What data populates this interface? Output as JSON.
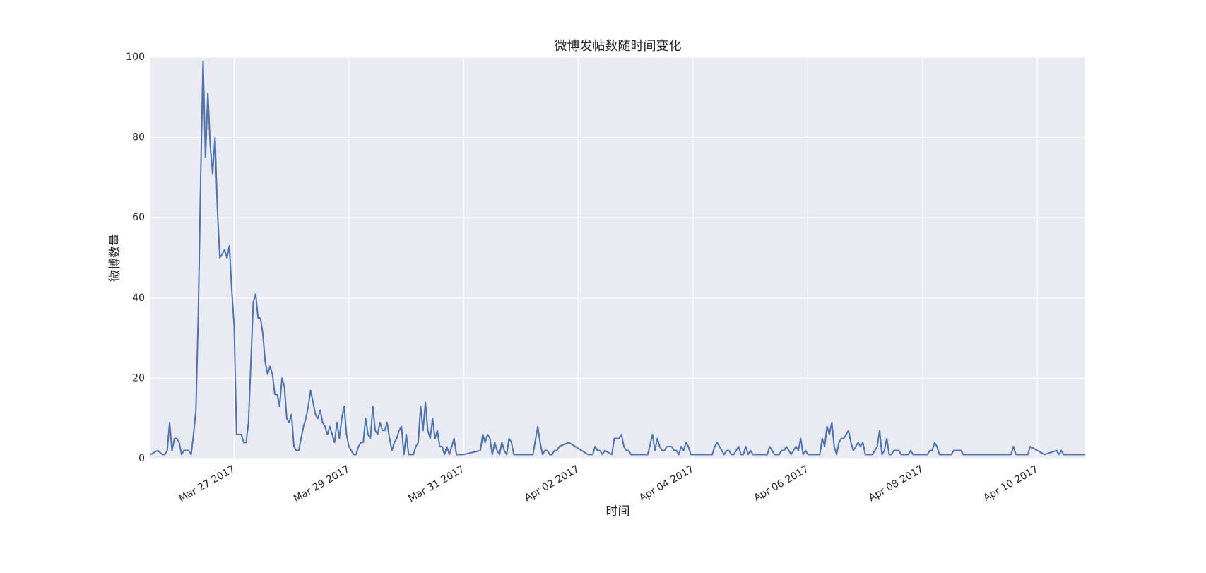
{
  "chart_data": {
    "type": "line",
    "title": "微博发帖数随时间变化",
    "xlabel": "时间",
    "ylabel": "微博数量",
    "color": "#4c72b0",
    "grid": true,
    "x": [
      "2017-03-25T13:00",
      "2017-03-25T16:00",
      "2017-03-25T18:00",
      "2017-03-25T19:00",
      "2017-03-25T20:00",
      "2017-03-25T21:00",
      "2017-03-25T22:00",
      "2017-03-25T23:00",
      "2017-03-26T00:00",
      "2017-03-26T01:00",
      "2017-03-26T02:00",
      "2017-03-26T03:00",
      "2017-03-26T04:00",
      "2017-03-26T05:00",
      "2017-03-26T06:00",
      "2017-03-26T07:00",
      "2017-03-26T08:00",
      "2017-03-26T09:00",
      "2017-03-26T10:00",
      "2017-03-26T11:00",
      "2017-03-26T12:00",
      "2017-03-26T13:00",
      "2017-03-26T14:00",
      "2017-03-26T15:00",
      "2017-03-26T16:00",
      "2017-03-26T17:00",
      "2017-03-26T18:00",
      "2017-03-26T19:00",
      "2017-03-26T20:00",
      "2017-03-26T21:00",
      "2017-03-26T22:00",
      "2017-03-26T23:00",
      "2017-03-27T00:00",
      "2017-03-27T01:00",
      "2017-03-27T02:00",
      "2017-03-27T03:00",
      "2017-03-27T04:00",
      "2017-03-27T05:00",
      "2017-03-27T06:00",
      "2017-03-27T07:00",
      "2017-03-27T08:00",
      "2017-03-27T09:00",
      "2017-03-27T10:00",
      "2017-03-27T11:00",
      "2017-03-27T12:00",
      "2017-03-27T13:00",
      "2017-03-27T14:00",
      "2017-03-27T15:00",
      "2017-03-27T16:00",
      "2017-03-27T17:00",
      "2017-03-27T18:00",
      "2017-03-27T19:00",
      "2017-03-27T20:00",
      "2017-03-27T21:00",
      "2017-03-27T22:00",
      "2017-03-27T23:00",
      "2017-03-28T00:00",
      "2017-03-28T01:00",
      "2017-03-28T02:00",
      "2017-03-28T03:00",
      "2017-03-28T04:00",
      "2017-03-28T05:00",
      "2017-03-28T06:00",
      "2017-03-28T07:00",
      "2017-03-28T08:00",
      "2017-03-28T09:00",
      "2017-03-28T10:00",
      "2017-03-28T11:00",
      "2017-03-28T12:00",
      "2017-03-28T13:00",
      "2017-03-28T14:00",
      "2017-03-28T15:00",
      "2017-03-28T16:00",
      "2017-03-28T17:00",
      "2017-03-28T18:00",
      "2017-03-28T19:00",
      "2017-03-28T20:00",
      "2017-03-28T21:00",
      "2017-03-28T22:00",
      "2017-03-28T23:00",
      "2017-03-29T00:00",
      "2017-03-29T01:00",
      "2017-03-29T02:00",
      "2017-03-29T03:00",
      "2017-03-29T04:00",
      "2017-03-29T05:00",
      "2017-03-29T06:00",
      "2017-03-29T07:00",
      "2017-03-29T08:00",
      "2017-03-29T09:00",
      "2017-03-29T10:00",
      "2017-03-29T11:00",
      "2017-03-29T12:00",
      "2017-03-29T13:00",
      "2017-03-29T14:00",
      "2017-03-29T15:00",
      "2017-03-29T16:00",
      "2017-03-29T17:00",
      "2017-03-29T18:00",
      "2017-03-29T19:00",
      "2017-03-29T20:00",
      "2017-03-29T21:00",
      "2017-03-29T22:00",
      "2017-03-29T23:00",
      "2017-03-30T00:00",
      "2017-03-30T01:00",
      "2017-03-30T02:00",
      "2017-03-30T03:00",
      "2017-03-30T04:00",
      "2017-03-30T05:00",
      "2017-03-30T06:00",
      "2017-03-30T07:00",
      "2017-03-30T08:00",
      "2017-03-30T09:00",
      "2017-03-30T10:00",
      "2017-03-30T11:00",
      "2017-03-30T12:00",
      "2017-03-30T13:00",
      "2017-03-30T14:00",
      "2017-03-30T15:00",
      "2017-03-30T16:00",
      "2017-03-30T17:00",
      "2017-03-30T18:00",
      "2017-03-30T19:00",
      "2017-03-30T20:00",
      "2017-03-30T21:00",
      "2017-03-30T22:00",
      "2017-03-31T00:00",
      "2017-03-31T07:00",
      "2017-03-31T08:00",
      "2017-03-31T09:00",
      "2017-03-31T10:00",
      "2017-03-31T11:00",
      "2017-03-31T12:00",
      "2017-03-31T13:00",
      "2017-03-31T14:00",
      "2017-03-31T15:00",
      "2017-03-31T16:00",
      "2017-03-31T17:00",
      "2017-03-31T18:00",
      "2017-03-31T19:00",
      "2017-03-31T20:00",
      "2017-03-31T21:00",
      "2017-04-01T05:00",
      "2017-04-01T07:00",
      "2017-04-01T08:00",
      "2017-04-01T09:00",
      "2017-04-01T10:00",
      "2017-04-01T11:00",
      "2017-04-01T12:00",
      "2017-04-01T13:00",
      "2017-04-01T14:00",
      "2017-04-01T15:00",
      "2017-04-01T16:00",
      "2017-04-01T20:00",
      "2017-04-02T04:00",
      "2017-04-02T06:00",
      "2017-04-02T07:00",
      "2017-04-02T08:00",
      "2017-04-02T09:00",
      "2017-04-02T10:00",
      "2017-04-02T11:00",
      "2017-04-02T14:00",
      "2017-04-02T15:00",
      "2017-04-02T16:00",
      "2017-04-02T17:00",
      "2017-04-02T18:00",
      "2017-04-02T19:00",
      "2017-04-02T20:00",
      "2017-04-02T21:00",
      "2017-04-02T22:00",
      "2017-04-03T00:00",
      "2017-04-03T05:00",
      "2017-04-03T07:00",
      "2017-04-03T08:00",
      "2017-04-03T09:00",
      "2017-04-03T10:00",
      "2017-04-03T11:00",
      "2017-04-03T12:00",
      "2017-04-03T13:00",
      "2017-04-03T14:00",
      "2017-04-03T15:00",
      "2017-04-03T16:00",
      "2017-04-03T17:00",
      "2017-04-03T18:00",
      "2017-04-03T19:00",
      "2017-04-03T20:00",
      "2017-04-03T21:00",
      "2017-04-03T22:00",
      "2017-04-03T23:00",
      "2017-04-04T08:00",
      "2017-04-04T09:00",
      "2017-04-04T10:00",
      "2017-04-04T11:00",
      "2017-04-04T12:00",
      "2017-04-04T13:00",
      "2017-04-04T14:00",
      "2017-04-04T15:00",
      "2017-04-04T16:00",
      "2017-04-04T17:00",
      "2017-04-04T18:00",
      "2017-04-04T19:00",
      "2017-04-04T20:00",
      "2017-04-04T21:00",
      "2017-04-04T22:00",
      "2017-04-04T23:00",
      "2017-04-05T00:00",
      "2017-04-05T01:00",
      "2017-04-05T07:00",
      "2017-04-05T08:00",
      "2017-04-05T09:00",
      "2017-04-05T10:00",
      "2017-04-05T12:00",
      "2017-04-05T13:00",
      "2017-04-05T14:00",
      "2017-04-05T15:00",
      "2017-04-05T16:00",
      "2017-04-05T17:00",
      "2017-04-05T18:00",
      "2017-04-05T19:00",
      "2017-04-05T20:00",
      "2017-04-05T21:00",
      "2017-04-05T22:00",
      "2017-04-05T23:00",
      "2017-04-06T00:00",
      "2017-04-06T05:00",
      "2017-04-06T06:00",
      "2017-04-06T07:00",
      "2017-04-06T08:00",
      "2017-04-06T09:00",
      "2017-04-06T10:00",
      "2017-04-06T11:00",
      "2017-04-06T12:00",
      "2017-04-06T13:00",
      "2017-04-06T14:00",
      "2017-04-06T15:00",
      "2017-04-06T16:00",
      "2017-04-06T17:00",
      "2017-04-06T18:00",
      "2017-04-06T19:00",
      "2017-04-06T20:00",
      "2017-04-06T21:00",
      "2017-04-06T22:00",
      "2017-04-06T23:00",
      "2017-04-07T00:00",
      "2017-04-07T03:00",
      "2017-04-07T04:00",
      "2017-04-07T05:00",
      "2017-04-07T06:00",
      "2017-04-07T07:00",
      "2017-04-07T08:00",
      "2017-04-07T09:00",
      "2017-04-07T10:00",
      "2017-04-07T11:00",
      "2017-04-07T12:00",
      "2017-04-07T13:00",
      "2017-04-07T14:00",
      "2017-04-07T15:00",
      "2017-04-07T18:00",
      "2017-04-07T19:00",
      "2017-04-07T20:00",
      "2017-04-08T02:00",
      "2017-04-08T03:00",
      "2017-04-08T04:00",
      "2017-04-08T05:00",
      "2017-04-08T06:00",
      "2017-04-08T07:00",
      "2017-04-08T12:00",
      "2017-04-08T13:00",
      "2017-04-08T16:00",
      "2017-04-08T17:00",
      "2017-04-09T13:00",
      "2017-04-09T14:00",
      "2017-04-09T15:00",
      "2017-04-09T20:00",
      "2017-04-09T21:00",
      "2017-04-10T03:00",
      "2017-04-10T08:00",
      "2017-04-10T09:00",
      "2017-04-10T10:00",
      "2017-04-10T11:00",
      "2017-04-10T20:00"
    ],
    "values": [
      1,
      2,
      1,
      1,
      2,
      9,
      2,
      5,
      5,
      4,
      1,
      2,
      2,
      2,
      1,
      6,
      12,
      36,
      70,
      99,
      75,
      91,
      78,
      71,
      80,
      62,
      50,
      51,
      52,
      50,
      53,
      42,
      33,
      6,
      6,
      6,
      4,
      4,
      9,
      24,
      39,
      41,
      35,
      35,
      31,
      24,
      21,
      23,
      21,
      16,
      16,
      13,
      20,
      18,
      10,
      9,
      11,
      3,
      2,
      2,
      5,
      8,
      10,
      13,
      17,
      14,
      11,
      10,
      12,
      9,
      8,
      6,
      8,
      6,
      4,
      9,
      5,
      10,
      13,
      6,
      3,
      2,
      1,
      1,
      3,
      4,
      4,
      10,
      6,
      5,
      13,
      7,
      6,
      9,
      7,
      7,
      9,
      5,
      2,
      4,
      5,
      7,
      8,
      1,
      6,
      1,
      1,
      1,
      3,
      4,
      13,
      7,
      14,
      7,
      5,
      10,
      5,
      7,
      3,
      3,
      1,
      3,
      1,
      3,
      5,
      1,
      1,
      1,
      2,
      6,
      4,
      6,
      5,
      1,
      4,
      2,
      1,
      4,
      2,
      1,
      5,
      4,
      1,
      1,
      8,
      4,
      1,
      2,
      2,
      1,
      1,
      2,
      2,
      3,
      4,
      1,
      1,
      3,
      2,
      2,
      1,
      2,
      1,
      5,
      5,
      5,
      6,
      3,
      2,
      2,
      1,
      1,
      1,
      6,
      2,
      5,
      3,
      2,
      2,
      3,
      3,
      3,
      2,
      2,
      1,
      3,
      2,
      4,
      3,
      1,
      1,
      3,
      4,
      3,
      2,
      1,
      2,
      2,
      1,
      1,
      2,
      3,
      1,
      1,
      3,
      1,
      2,
      1,
      1,
      3,
      2,
      1,
      1,
      2,
      2,
      3,
      2,
      1,
      2,
      3,
      2,
      5,
      1,
      2,
      1,
      1,
      5,
      3,
      8,
      6,
      9,
      3,
      1,
      4,
      5,
      5,
      6,
      7,
      4,
      2,
      3,
      4,
      3,
      4,
      1,
      1,
      2,
      3,
      7,
      1,
      2,
      5,
      1,
      1,
      2,
      2,
      2,
      1,
      1,
      2,
      1,
      1,
      2,
      2,
      4,
      3,
      1,
      1,
      2,
      2,
      1,
      1,
      3,
      1,
      1,
      3,
      1,
      2,
      1,
      2,
      1,
      1
    ],
    "xlim": [
      "2017-03-25T13:00",
      "2017-04-10T20:00"
    ],
    "xticks": [
      {
        "value": "2017-03-27T00:00",
        "label": "Mar 27 2017"
      },
      {
        "value": "2017-03-29T00:00",
        "label": "Mar 29 2017"
      },
      {
        "value": "2017-03-31T00:00",
        "label": "Mar 31 2017"
      },
      {
        "value": "2017-04-02T00:00",
        "label": "Apr 02 2017"
      },
      {
        "value": "2017-04-04T00:00",
        "label": "Apr 04 2017"
      },
      {
        "value": "2017-04-06T00:00",
        "label": "Apr 06 2017"
      },
      {
        "value": "2017-04-08T00:00",
        "label": "Apr 08 2017"
      },
      {
        "value": "2017-04-10T00:00",
        "label": "Apr 10 2017"
      }
    ],
    "ylim": [
      0,
      100
    ],
    "yticks": [
      0,
      20,
      40,
      60,
      80,
      100
    ]
  }
}
